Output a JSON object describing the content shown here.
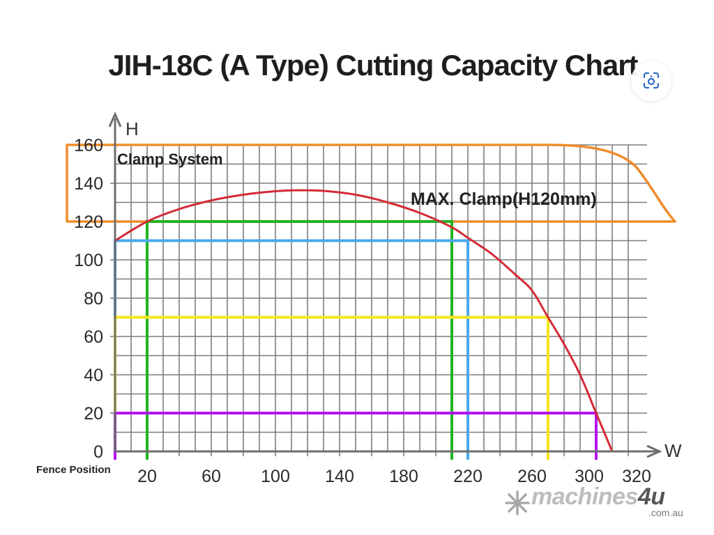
{
  "chart_data": {
    "type": "line",
    "title": "JIH-18C (A Type) Cutting Capacity Chart",
    "xlabel": "W",
    "ylabel": "H",
    "x_axis_caption": "Fence Position",
    "xlim": [
      0,
      320
    ],
    "ylim": [
      0,
      160
    ],
    "grid": true,
    "x_ticks": [
      20,
      60,
      100,
      140,
      180,
      220,
      260,
      300,
      320
    ],
    "y_ticks": [
      0,
      20,
      40,
      60,
      80,
      100,
      120,
      140,
      160
    ],
    "capacity_curve": {
      "name": "Cutting capacity",
      "color": "#d42a35",
      "points": [
        [
          0,
          110
        ],
        [
          20,
          120
        ],
        [
          40,
          126.5
        ],
        [
          60,
          131
        ],
        [
          80,
          134
        ],
        [
          100,
          135.8
        ],
        [
          115,
          136.3
        ],
        [
          130,
          136
        ],
        [
          150,
          134
        ],
        [
          170,
          130
        ],
        [
          190,
          124.5
        ],
        [
          210,
          117
        ],
        [
          220,
          111.5
        ],
        [
          235,
          103
        ],
        [
          250,
          92
        ],
        [
          260,
          84
        ],
        [
          270,
          70
        ],
        [
          280,
          56
        ],
        [
          290,
          40
        ],
        [
          300,
          20
        ],
        [
          310,
          0
        ]
      ]
    },
    "clamp_region": {
      "label": "Clamp System",
      "annotation": "MAX. Clamp(H120mm)",
      "color": "#ef8c2c",
      "h_min": 120,
      "h_max": 160
    },
    "series": [
      {
        "name": "green",
        "color": "#22b322",
        "w_from": 20,
        "w_to": 210,
        "h": 120
      },
      {
        "name": "blue",
        "color": "#4aa8ee",
        "w_from": 0,
        "w_to": 220,
        "h": 110
      },
      {
        "name": "yellow",
        "color": "#f5e51a",
        "w_from": 0,
        "w_to": 270,
        "h": 70
      },
      {
        "name": "purple",
        "color": "#b414ee",
        "w_from": 0,
        "w_to": 300,
        "h": 20
      }
    ]
  },
  "watermark": {
    "brand": "machines",
    "brand_four": "4u",
    "domain": ".com.au"
  },
  "overlay": {
    "icon": "lens-search-icon"
  }
}
